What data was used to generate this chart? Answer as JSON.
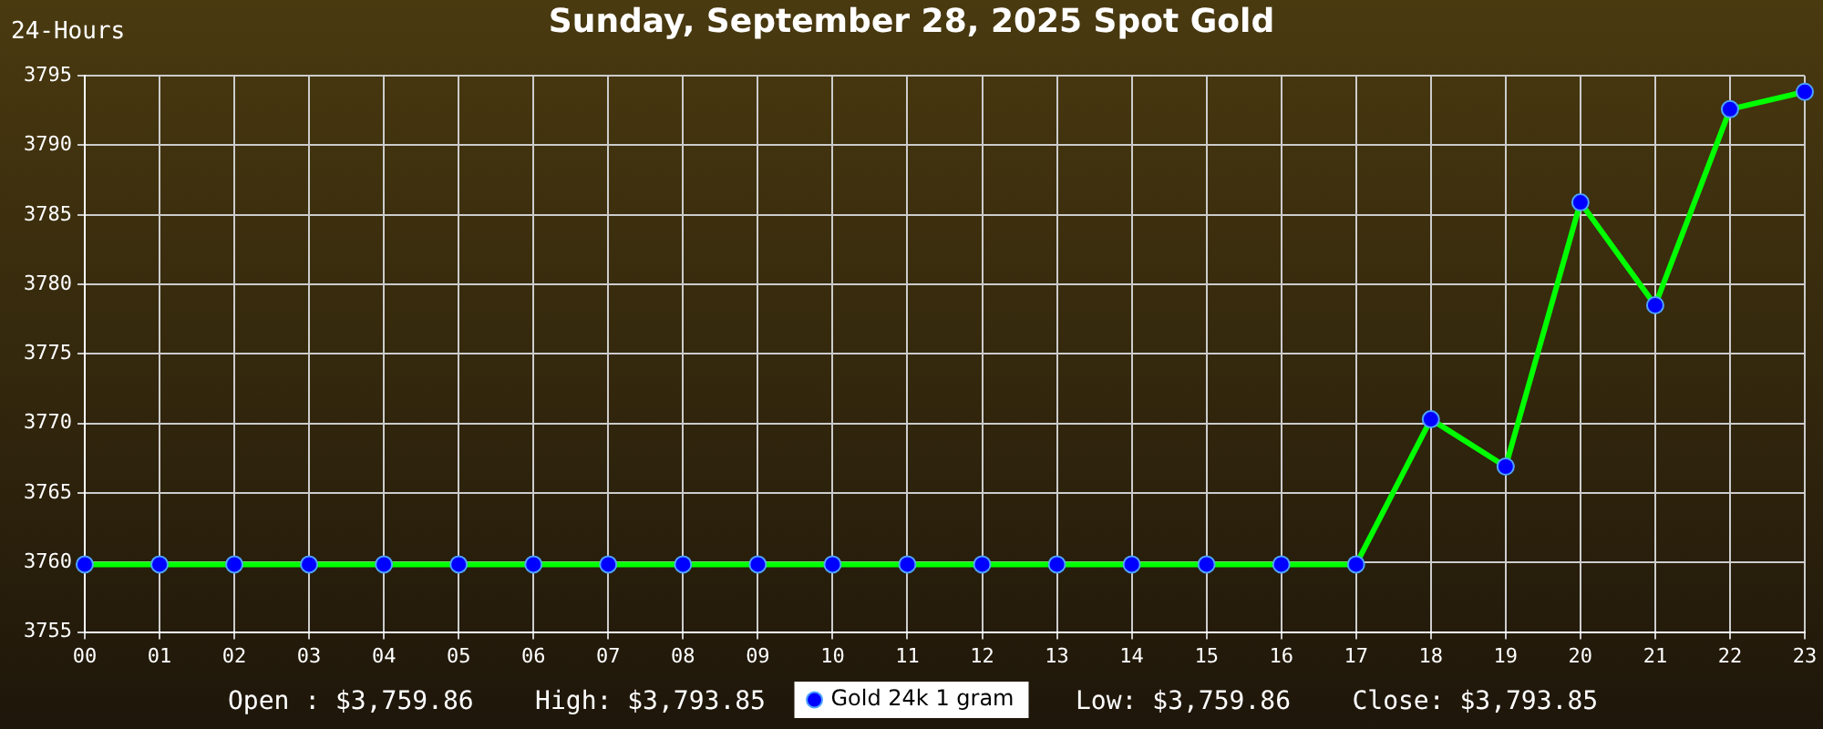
{
  "chart_data": {
    "type": "line",
    "title": "Sunday, September 28, 2025 Spot Gold",
    "categories": [
      "00",
      "01",
      "02",
      "03",
      "04",
      "05",
      "06",
      "07",
      "08",
      "09",
      "10",
      "11",
      "12",
      "13",
      "14",
      "15",
      "16",
      "17",
      "18",
      "19",
      "20",
      "21",
      "22",
      "23"
    ],
    "series": [
      {
        "name": "Gold 24k 1 gram",
        "color": "#00ff00",
        "values": [
          3759.86,
          3759.86,
          3759.86,
          3759.86,
          3759.86,
          3759.86,
          3759.86,
          3759.86,
          3759.86,
          3759.86,
          3759.86,
          3759.86,
          3759.86,
          3759.86,
          3759.86,
          3759.86,
          3759.86,
          3759.86,
          3770.3,
          3766.9,
          3785.9,
          3778.5,
          3792.6,
          3793.85
        ]
      }
    ],
    "ylim": [
      3755,
      3795
    ],
    "yticks": [
      3755,
      3760,
      3765,
      3770,
      3775,
      3780,
      3785,
      3790,
      3795
    ],
    "grid": true,
    "legend": "bottom",
    "marker": "circle",
    "annotations": [
      "24-Hours",
      "Open : $3,759.86",
      "High: $3,793.85",
      "Low: $3,759.86",
      "Close: $3,793.85"
    ]
  }
}
